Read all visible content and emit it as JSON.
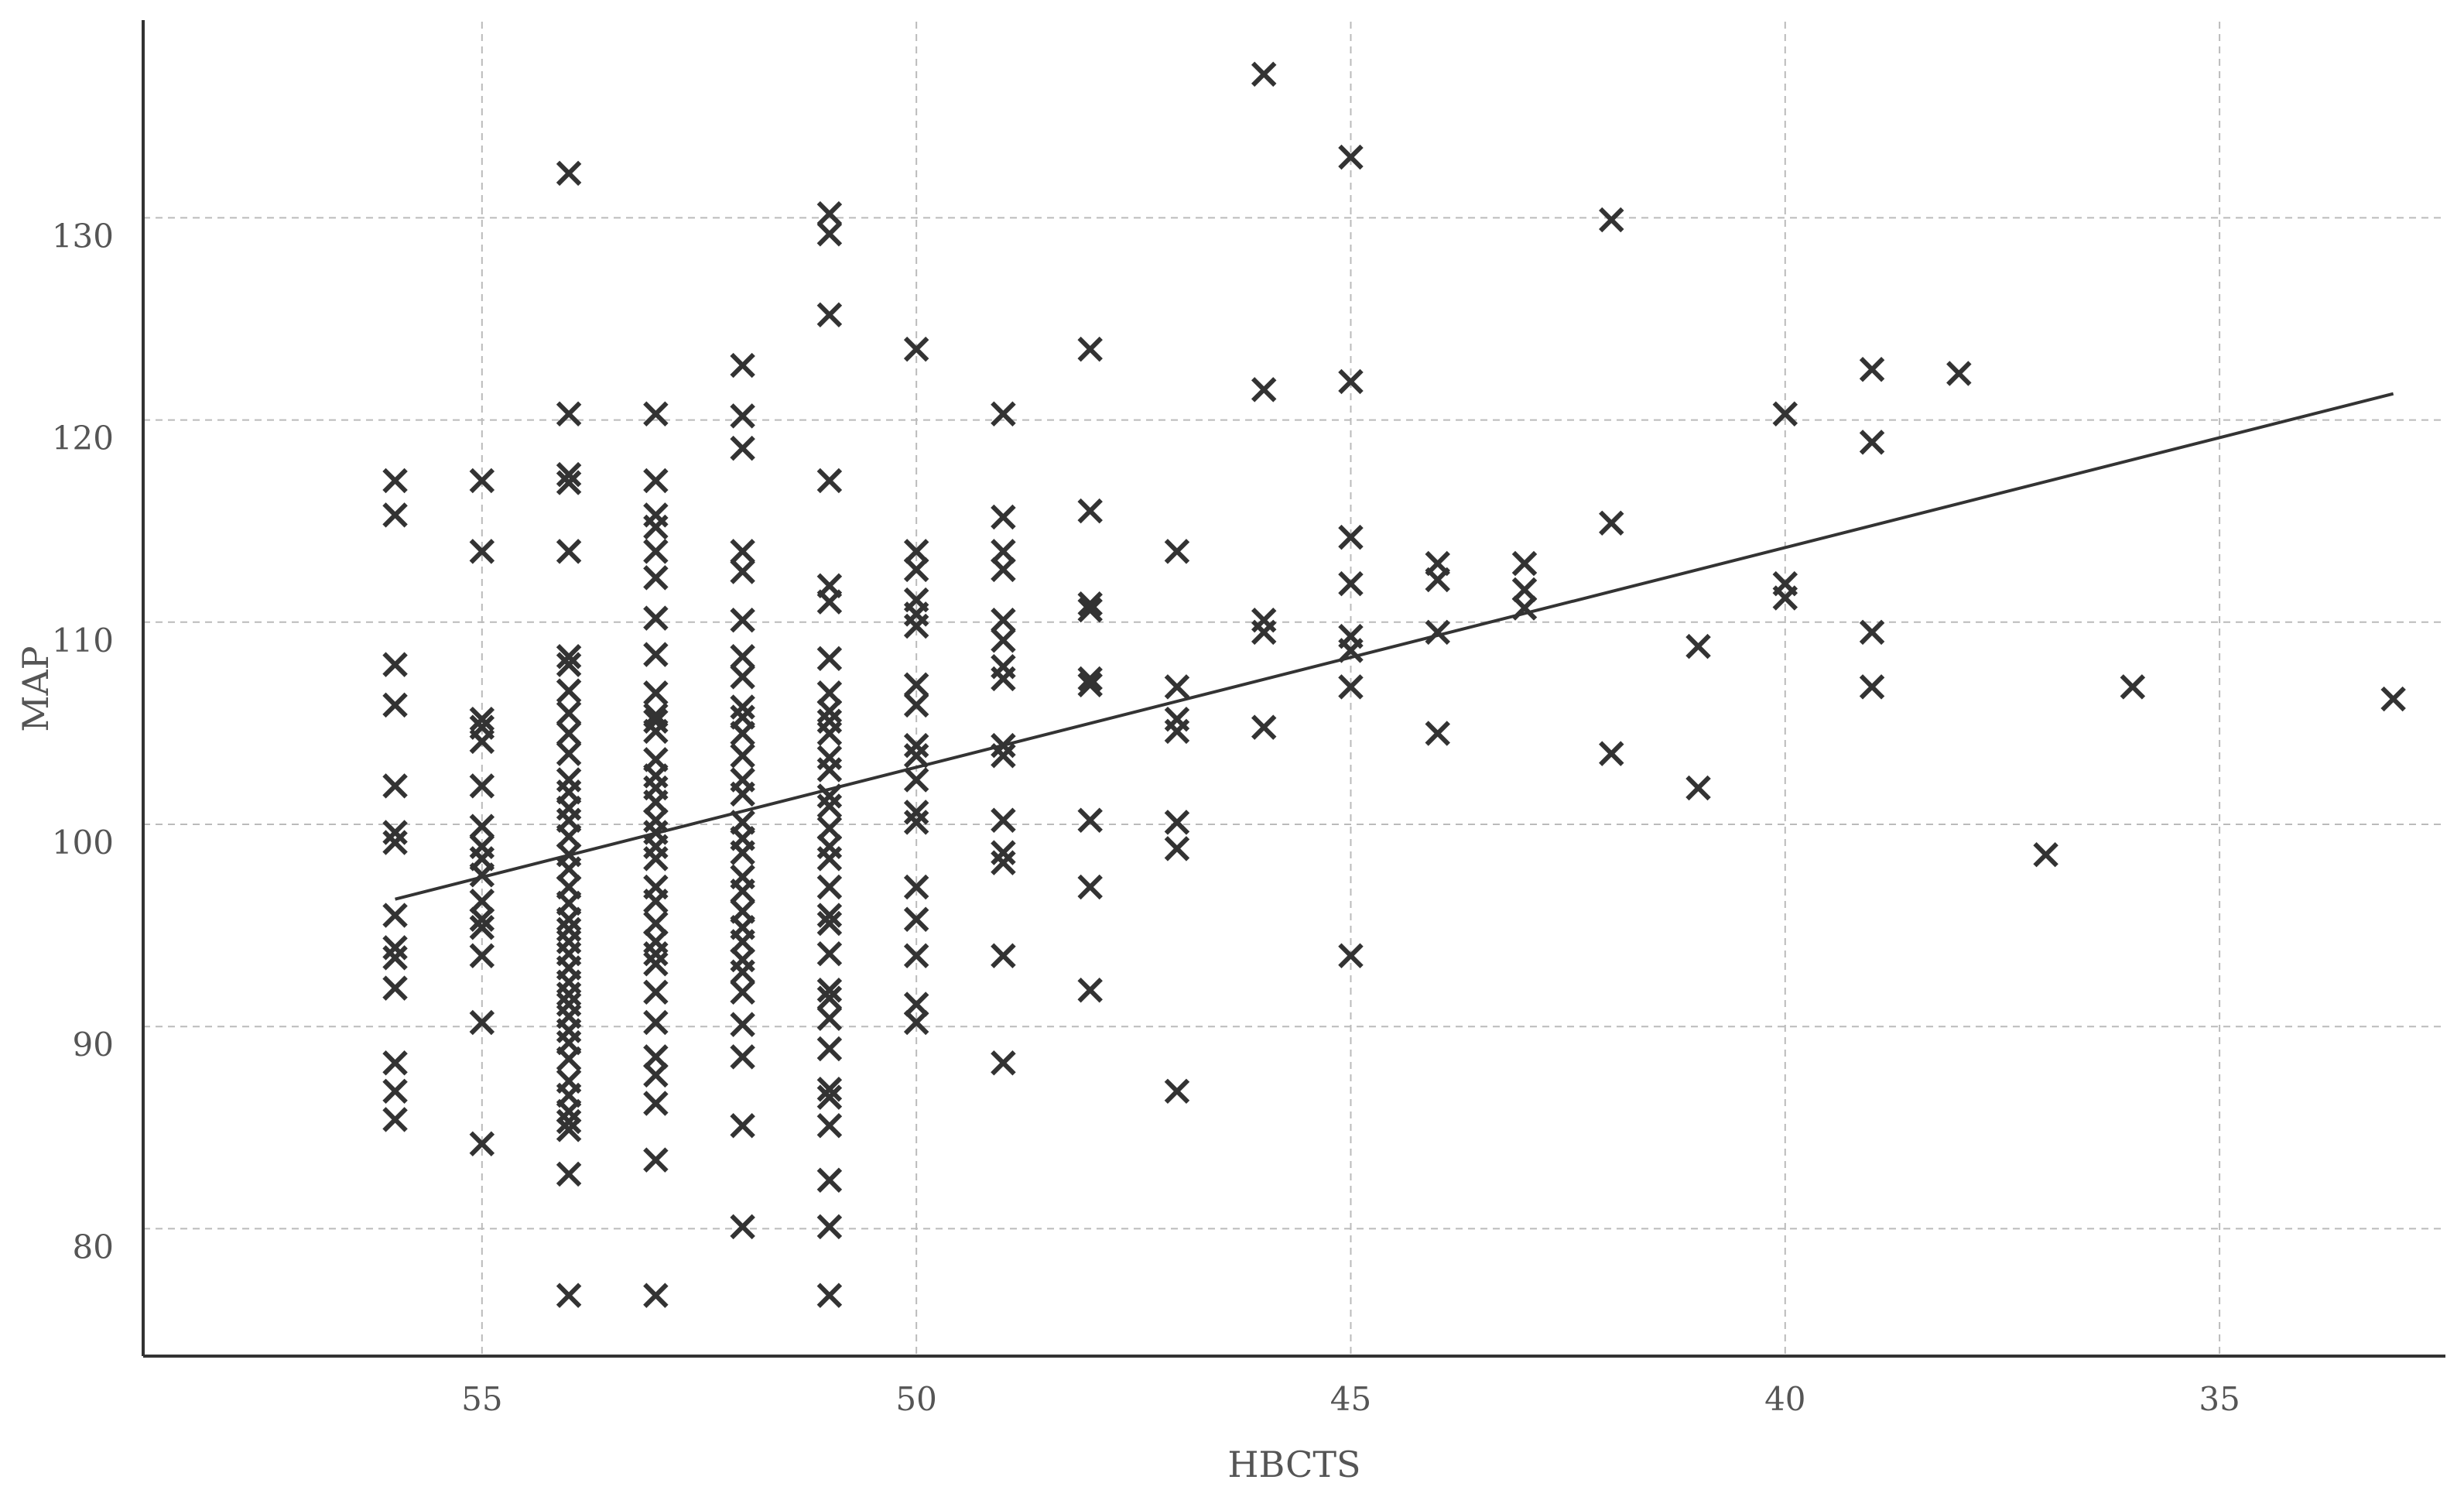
{
  "chart_data": {
    "type": "scatter",
    "title": "",
    "xlabel": "HBCTS",
    "ylabel": "MAP",
    "x_reversed": true,
    "xlim": [
      58.9,
      32.4
    ],
    "ylim": [
      73.7,
      139.7
    ],
    "xticks": [
      55,
      50,
      45,
      40,
      35
    ],
    "yticks": [
      80,
      90,
      100,
      110,
      120,
      130
    ],
    "grid": true,
    "marker": "x",
    "color": "#333333",
    "series": [
      {
        "values": [
          {
            "x": 56,
            "y": 117
          },
          {
            "x": 56,
            "y": 115.3
          },
          {
            "x": 56,
            "y": 107.9
          },
          {
            "x": 56,
            "y": 105.9
          },
          {
            "x": 56,
            "y": 101.9
          },
          {
            "x": 56,
            "y": 99.6
          },
          {
            "x": 56,
            "y": 99.1
          },
          {
            "x": 56,
            "y": 95.5
          },
          {
            "x": 56,
            "y": 93.9
          },
          {
            "x": 56,
            "y": 93.4
          },
          {
            "x": 56,
            "y": 91.9
          },
          {
            "x": 56,
            "y": 88.2
          },
          {
            "x": 56,
            "y": 86.8
          },
          {
            "x": 56,
            "y": 85.4
          },
          {
            "x": 55,
            "y": 117
          },
          {
            "x": 55,
            "y": 113.5
          },
          {
            "x": 55,
            "y": 105.2
          },
          {
            "x": 55,
            "y": 104.8
          },
          {
            "x": 55,
            "y": 104.1
          },
          {
            "x": 55,
            "y": 101.9
          },
          {
            "x": 55,
            "y": 99.9
          },
          {
            "x": 55,
            "y": 98.9
          },
          {
            "x": 55,
            "y": 98.3
          },
          {
            "x": 55,
            "y": 97.5
          },
          {
            "x": 55,
            "y": 96.2
          },
          {
            "x": 55,
            "y": 95.3
          },
          {
            "x": 55,
            "y": 94.9
          },
          {
            "x": 55,
            "y": 93.5
          },
          {
            "x": 55,
            "y": 90.2
          },
          {
            "x": 55,
            "y": 84.2
          },
          {
            "x": 54,
            "y": 132.2
          },
          {
            "x": 54,
            "y": 120.3
          },
          {
            "x": 54,
            "y": 117.3
          },
          {
            "x": 54,
            "y": 116.9
          },
          {
            "x": 54,
            "y": 113.5
          },
          {
            "x": 54,
            "y": 108.3
          },
          {
            "x": 54,
            "y": 107.9
          },
          {
            "x": 54,
            "y": 106.6
          },
          {
            "x": 54,
            "y": 105.5
          },
          {
            "x": 54,
            "y": 104.5
          },
          {
            "x": 54,
            "y": 103.5
          },
          {
            "x": 54,
            "y": 102.2
          },
          {
            "x": 54,
            "y": 101.6
          },
          {
            "x": 54,
            "y": 100.8
          },
          {
            "x": 54,
            "y": 100.2
          },
          {
            "x": 54,
            "y": 99.4
          },
          {
            "x": 54,
            "y": 98.5
          },
          {
            "x": 54,
            "y": 97.8
          },
          {
            "x": 54,
            "y": 96.9
          },
          {
            "x": 54,
            "y": 96.1
          },
          {
            "x": 54,
            "y": 95.3
          },
          {
            "x": 54,
            "y": 94.8
          },
          {
            "x": 54,
            "y": 94.2
          },
          {
            "x": 54,
            "y": 93.6
          },
          {
            "x": 54,
            "y": 92.9
          },
          {
            "x": 54,
            "y": 92.2
          },
          {
            "x": 54,
            "y": 91.6
          },
          {
            "x": 54,
            "y": 91.1
          },
          {
            "x": 54,
            "y": 90.5
          },
          {
            "x": 54,
            "y": 89.8
          },
          {
            "x": 54,
            "y": 89.2
          },
          {
            "x": 54,
            "y": 88.4
          },
          {
            "x": 54,
            "y": 87.3
          },
          {
            "x": 54,
            "y": 86.6
          },
          {
            "x": 54,
            "y": 85.8
          },
          {
            "x": 54,
            "y": 85.3
          },
          {
            "x": 54,
            "y": 84.9
          },
          {
            "x": 54,
            "y": 82.7
          },
          {
            "x": 54,
            "y": 76.7
          },
          {
            "x": 53,
            "y": 120.3
          },
          {
            "x": 53,
            "y": 117
          },
          {
            "x": 53,
            "y": 115.3
          },
          {
            "x": 53,
            "y": 114.7
          },
          {
            "x": 53,
            "y": 113.5
          },
          {
            "x": 53,
            "y": 112.2
          },
          {
            "x": 53,
            "y": 110.2
          },
          {
            "x": 53,
            "y": 108.4
          },
          {
            "x": 53,
            "y": 106.5
          },
          {
            "x": 53,
            "y": 105.4
          },
          {
            "x": 53,
            "y": 105.1
          },
          {
            "x": 53,
            "y": 104.6
          },
          {
            "x": 53,
            "y": 103.2
          },
          {
            "x": 53,
            "y": 102.4
          },
          {
            "x": 53,
            "y": 101.8
          },
          {
            "x": 53,
            "y": 101.1
          },
          {
            "x": 53,
            "y": 100.2
          },
          {
            "x": 53,
            "y": 99.6
          },
          {
            "x": 53,
            "y": 98.9
          },
          {
            "x": 53,
            "y": 98.3
          },
          {
            "x": 53,
            "y": 96.9
          },
          {
            "x": 53,
            "y": 96.2
          },
          {
            "x": 53,
            "y": 95.1
          },
          {
            "x": 53,
            "y": 94.2
          },
          {
            "x": 53,
            "y": 93.6
          },
          {
            "x": 53,
            "y": 93.1
          },
          {
            "x": 53,
            "y": 91.7
          },
          {
            "x": 53,
            "y": 90.2
          },
          {
            "x": 53,
            "y": 88.5
          },
          {
            "x": 53,
            "y": 87.6
          },
          {
            "x": 53,
            "y": 86.2
          },
          {
            "x": 53,
            "y": 83.4
          },
          {
            "x": 53,
            "y": 76.7
          },
          {
            "x": 52,
            "y": 122.7
          },
          {
            "x": 52,
            "y": 120.2
          },
          {
            "x": 52,
            "y": 118.6
          },
          {
            "x": 52,
            "y": 113.5
          },
          {
            "x": 52,
            "y": 112.5
          },
          {
            "x": 52,
            "y": 110.1
          },
          {
            "x": 52,
            "y": 108.3
          },
          {
            "x": 52,
            "y": 107.3
          },
          {
            "x": 52,
            "y": 105.8
          },
          {
            "x": 52,
            "y": 105.3
          },
          {
            "x": 52,
            "y": 104.5
          },
          {
            "x": 52,
            "y": 103.4
          },
          {
            "x": 52,
            "y": 102.2
          },
          {
            "x": 52,
            "y": 101.5
          },
          {
            "x": 52,
            "y": 100.1
          },
          {
            "x": 52,
            "y": 99.3
          },
          {
            "x": 52,
            "y": 98.6
          },
          {
            "x": 52,
            "y": 97.4
          },
          {
            "x": 52,
            "y": 96.7
          },
          {
            "x": 52,
            "y": 95.7
          },
          {
            "x": 52,
            "y": 94.9
          },
          {
            "x": 52,
            "y": 94.2
          },
          {
            "x": 52,
            "y": 93.3
          },
          {
            "x": 52,
            "y": 92.7
          },
          {
            "x": 52,
            "y": 91.7
          },
          {
            "x": 52,
            "y": 90.1
          },
          {
            "x": 52,
            "y": 88.5
          },
          {
            "x": 52,
            "y": 85.1
          },
          {
            "x": 52,
            "y": 80.1
          },
          {
            "x": 51,
            "y": 130.2
          },
          {
            "x": 51,
            "y": 129.2
          },
          {
            "x": 51,
            "y": 125.2
          },
          {
            "x": 51,
            "y": 117
          },
          {
            "x": 51,
            "y": 111.8
          },
          {
            "x": 51,
            "y": 111
          },
          {
            "x": 51,
            "y": 108.2
          },
          {
            "x": 51,
            "y": 106.5
          },
          {
            "x": 51,
            "y": 105.6
          },
          {
            "x": 51,
            "y": 105.1
          },
          {
            "x": 51,
            "y": 104.5
          },
          {
            "x": 51,
            "y": 103.3
          },
          {
            "x": 51,
            "y": 102.7
          },
          {
            "x": 51,
            "y": 101.4
          },
          {
            "x": 51,
            "y": 100.9
          },
          {
            "x": 51,
            "y": 99.8
          },
          {
            "x": 51,
            "y": 98.9
          },
          {
            "x": 51,
            "y": 98.3
          },
          {
            "x": 51,
            "y": 96.9
          },
          {
            "x": 51,
            "y": 95.5
          },
          {
            "x": 51,
            "y": 95.1
          },
          {
            "x": 51,
            "y": 93.6
          },
          {
            "x": 51,
            "y": 91.8
          },
          {
            "x": 51,
            "y": 91.4
          },
          {
            "x": 51,
            "y": 90.4
          },
          {
            "x": 51,
            "y": 88.9
          },
          {
            "x": 51,
            "y": 86.9
          },
          {
            "x": 51,
            "y": 86.5
          },
          {
            "x": 51,
            "y": 85.1
          },
          {
            "x": 51,
            "y": 82.4
          },
          {
            "x": 51,
            "y": 80.1
          },
          {
            "x": 51,
            "y": 76.7
          },
          {
            "x": 50,
            "y": 123.5
          },
          {
            "x": 50,
            "y": 113.5
          },
          {
            "x": 50,
            "y": 112.6
          },
          {
            "x": 50,
            "y": 111.1
          },
          {
            "x": 50,
            "y": 110.4
          },
          {
            "x": 50,
            "y": 109.8
          },
          {
            "x": 50,
            "y": 106.9
          },
          {
            "x": 50,
            "y": 105.9
          },
          {
            "x": 50,
            "y": 103.9
          },
          {
            "x": 50,
            "y": 103.4
          },
          {
            "x": 50,
            "y": 102.2
          },
          {
            "x": 50,
            "y": 100.6
          },
          {
            "x": 50,
            "y": 100.1
          },
          {
            "x": 50,
            "y": 96.9
          },
          {
            "x": 50,
            "y": 95.3
          },
          {
            "x": 50,
            "y": 93.5
          },
          {
            "x": 50,
            "y": 91.1
          },
          {
            "x": 50,
            "y": 90.2
          },
          {
            "x": 49,
            "y": 120.3
          },
          {
            "x": 49,
            "y": 115.2
          },
          {
            "x": 49,
            "y": 113.5
          },
          {
            "x": 49,
            "y": 112.6
          },
          {
            "x": 49,
            "y": 110.1
          },
          {
            "x": 49,
            "y": 109.1
          },
          {
            "x": 49,
            "y": 107.8
          },
          {
            "x": 49,
            "y": 107.2
          },
          {
            "x": 49,
            "y": 103.9
          },
          {
            "x": 49,
            "y": 103.4
          },
          {
            "x": 49,
            "y": 100.2
          },
          {
            "x": 49,
            "y": 98.6
          },
          {
            "x": 49,
            "y": 98.1
          },
          {
            "x": 49,
            "y": 93.5
          },
          {
            "x": 49,
            "y": 88.2
          },
          {
            "x": 48,
            "y": 123.5
          },
          {
            "x": 48,
            "y": 115.5
          },
          {
            "x": 48,
            "y": 110.9
          },
          {
            "x": 48,
            "y": 110.6
          },
          {
            "x": 48,
            "y": 107.2
          },
          {
            "x": 48,
            "y": 106.9
          },
          {
            "x": 48,
            "y": 100.2
          },
          {
            "x": 48,
            "y": 96.9
          },
          {
            "x": 48,
            "y": 91.8
          },
          {
            "x": 47,
            "y": 113.5
          },
          {
            "x": 47,
            "y": 106.8
          },
          {
            "x": 47,
            "y": 105.2
          },
          {
            "x": 47,
            "y": 104.6
          },
          {
            "x": 47,
            "y": 100.1
          },
          {
            "x": 47,
            "y": 98.8
          },
          {
            "x": 47,
            "y": 86.8
          },
          {
            "x": 46,
            "y": 137.1
          },
          {
            "x": 46,
            "y": 121.5
          },
          {
            "x": 46,
            "y": 110.1
          },
          {
            "x": 46,
            "y": 109.5
          },
          {
            "x": 46,
            "y": 104.8
          },
          {
            "x": 45,
            "y": 133
          },
          {
            "x": 45,
            "y": 121.9
          },
          {
            "x": 45,
            "y": 114.2
          },
          {
            "x": 45,
            "y": 111.9
          },
          {
            "x": 45,
            "y": 109.3
          },
          {
            "x": 45,
            "y": 108.6
          },
          {
            "x": 45,
            "y": 106.8
          },
          {
            "x": 45,
            "y": 93.5
          },
          {
            "x": 44,
            "y": 112.9
          },
          {
            "x": 44,
            "y": 112.1
          },
          {
            "x": 44,
            "y": 109.5
          },
          {
            "x": 44,
            "y": 104.5
          },
          {
            "x": 43,
            "y": 112.9
          },
          {
            "x": 43,
            "y": 111.6
          },
          {
            "x": 43,
            "y": 110.7
          },
          {
            "x": 42,
            "y": 129.9
          },
          {
            "x": 42,
            "y": 114.9
          },
          {
            "x": 42,
            "y": 103.5
          },
          {
            "x": 41,
            "y": 108.8
          },
          {
            "x": 41,
            "y": 101.8
          },
          {
            "x": 40,
            "y": 120.3
          },
          {
            "x": 40,
            "y": 111.9
          },
          {
            "x": 40,
            "y": 111.2
          },
          {
            "x": 39,
            "y": 122.5
          },
          {
            "x": 39,
            "y": 118.9
          },
          {
            "x": 39,
            "y": 109.5
          },
          {
            "x": 39,
            "y": 106.8
          },
          {
            "x": 38,
            "y": 122.3
          },
          {
            "x": 37,
            "y": 98.5
          },
          {
            "x": 36,
            "y": 106.8
          },
          {
            "x": 33,
            "y": 106.2
          }
        ]
      }
    ],
    "trendline": {
      "x": [
        56,
        33
      ],
      "y": [
        96.3,
        121.3
      ]
    }
  }
}
